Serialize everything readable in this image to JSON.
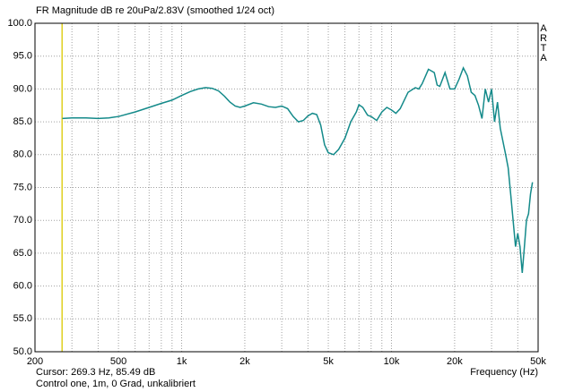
{
  "chart_data": {
    "type": "line",
    "title": "FR Magnitude dB re 20uPa/2.83V (smoothed 1/24 oct)",
    "side_label": "ARTA",
    "x_label": "Frequency (Hz)",
    "cursor_text": "Cursor: 269.3 Hz, 85.49 dB",
    "info_text": "Control one, 1m, 0 Grad, unkalibriert",
    "cursor_x": 269.3,
    "cursor_color": "#e0d020",
    "log_x": true,
    "grid": true,
    "xlim": [
      200,
      50000
    ],
    "ylim": [
      50,
      100
    ],
    "xticks": [
      200,
      500,
      {
        "value": 1000,
        "label": "1k"
      },
      {
        "value": 2000,
        "label": "2k"
      },
      {
        "value": 5000,
        "label": "5k"
      },
      {
        "value": 10000,
        "label": "10k"
      },
      {
        "value": 20000,
        "label": "20k"
      },
      {
        "value": 50000,
        "label": "50k"
      }
    ],
    "xminor_ticks": [
      300,
      400,
      600,
      700,
      800,
      900,
      3000,
      4000,
      6000,
      7000,
      8000,
      9000,
      30000,
      40000
    ],
    "yticks": [
      {
        "value": 50,
        "label": "50.0"
      },
      {
        "value": 55,
        "label": "55.0"
      },
      {
        "value": 60,
        "label": "60.0"
      },
      {
        "value": 65,
        "label": "65.0"
      },
      {
        "value": 70,
        "label": "70.0"
      },
      {
        "value": 75,
        "label": "75.0"
      },
      {
        "value": 80,
        "label": "80.0"
      },
      {
        "value": 85,
        "label": "85.0"
      },
      {
        "value": 90,
        "label": "90.0"
      },
      {
        "value": 95,
        "label": "95.0"
      },
      {
        "value": 100,
        "label": "100.0"
      }
    ],
    "x": [
      270,
      300,
      350,
      400,
      450,
      500,
      600,
      700,
      800,
      900,
      1000,
      1100,
      1200,
      1300,
      1400,
      1500,
      1600,
      1700,
      1800,
      1900,
      2000,
      2200,
      2400,
      2600,
      2800,
      3000,
      3200,
      3400,
      3600,
      3800,
      4000,
      4200,
      4400,
      4600,
      4800,
      5000,
      5300,
      5600,
      6000,
      6400,
      6800,
      7000,
      7300,
      7700,
      8000,
      8500,
      9000,
      9500,
      10000,
      10500,
      11000,
      12000,
      13000,
      13500,
      14000,
      15000,
      16000,
      16500,
      17000,
      18000,
      19000,
      20000,
      21000,
      22000,
      23000,
      24000,
      25000,
      26000,
      27000,
      28000,
      29000,
      30000,
      31000,
      32000,
      33000,
      34000,
      35000,
      36000,
      37000,
      38000,
      39000,
      40000,
      41000,
      42000,
      43000,
      44000,
      45000,
      46000,
      47000
    ],
    "series": [
      {
        "color": "#148a8a",
        "values": [
          85.5,
          85.6,
          85.6,
          85.5,
          85.6,
          85.8,
          86.5,
          87.2,
          87.8,
          88.3,
          89.0,
          89.6,
          90.0,
          90.2,
          90.1,
          89.7,
          88.9,
          88.0,
          87.4,
          87.2,
          87.4,
          87.9,
          87.7,
          87.3,
          87.2,
          87.4,
          87.0,
          85.8,
          85.0,
          85.2,
          85.9,
          86.3,
          86.1,
          84.5,
          81.5,
          80.3,
          80.0,
          80.8,
          82.5,
          85.0,
          86.5,
          87.6,
          87.2,
          86.0,
          85.8,
          85.2,
          86.5,
          87.2,
          86.8,
          86.3,
          87.0,
          89.5,
          90.2,
          90.0,
          90.8,
          93.0,
          92.5,
          90.6,
          90.4,
          92.5,
          90.0,
          90.0,
          91.5,
          93.2,
          92.0,
          89.5,
          89.0,
          87.5,
          85.5,
          90.0,
          88.0,
          90.0,
          85.0,
          88.0,
          84.0,
          82.0,
          80.0,
          78.0,
          74.0,
          70.0,
          66.0,
          68.0,
          66.0,
          62.0,
          66.0,
          70.0,
          71.0,
          74.0,
          75.8
        ]
      }
    ]
  }
}
